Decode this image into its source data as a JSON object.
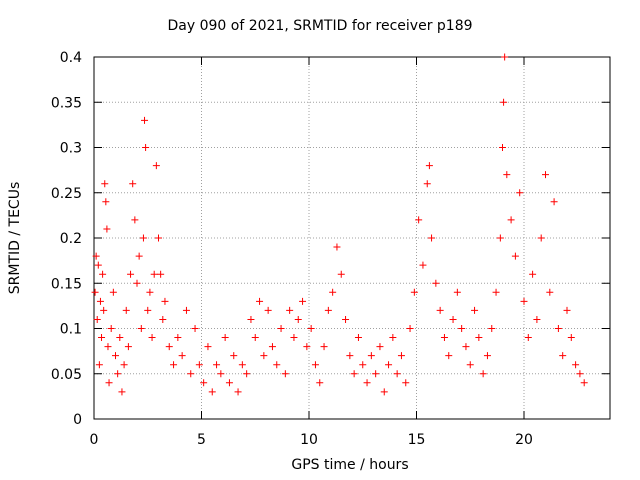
{
  "chart_data": {
    "type": "scatter",
    "title": "Day 090 of 2021, SRMTID for receiver p189",
    "xlabel": "GPS time / hours",
    "ylabel": "SRMTID / TECUs",
    "xlim": [
      0,
      24
    ],
    "ylim": [
      0,
      0.4
    ],
    "xticks": [
      0,
      5,
      10,
      15,
      20
    ],
    "yticks": [
      0,
      0.05,
      0.1,
      0.15,
      0.2,
      0.25,
      0.3,
      0.35,
      0.4
    ],
    "xtick_labels": [
      "0",
      "5",
      "10",
      "15",
      "20"
    ],
    "ytick_labels": [
      "0",
      "0.05",
      "0.1",
      "0.15",
      "0.2",
      "0.25",
      "0.3",
      "0.35",
      "0.4"
    ],
    "grid": true,
    "marker": "+",
    "color": "#ff0000",
    "series": [
      {
        "name": "SRMTID",
        "points": [
          [
            0.05,
            0.14
          ],
          [
            0.1,
            0.18
          ],
          [
            0.15,
            0.11
          ],
          [
            0.2,
            0.17
          ],
          [
            0.25,
            0.06
          ],
          [
            0.3,
            0.13
          ],
          [
            0.35,
            0.09
          ],
          [
            0.4,
            0.16
          ],
          [
            0.45,
            0.12
          ],
          [
            0.5,
            0.26
          ],
          [
            0.55,
            0.24
          ],
          [
            0.6,
            0.21
          ],
          [
            0.65,
            0.08
          ],
          [
            0.7,
            0.04
          ],
          [
            0.8,
            0.1
          ],
          [
            0.9,
            0.14
          ],
          [
            1.0,
            0.07
          ],
          [
            1.1,
            0.05
          ],
          [
            1.2,
            0.09
          ],
          [
            1.3,
            0.03
          ],
          [
            1.4,
            0.06
          ],
          [
            1.5,
            0.12
          ],
          [
            1.6,
            0.08
          ],
          [
            1.7,
            0.16
          ],
          [
            1.8,
            0.26
          ],
          [
            1.9,
            0.22
          ],
          [
            2.0,
            0.15
          ],
          [
            2.1,
            0.18
          ],
          [
            2.2,
            0.1
          ],
          [
            2.3,
            0.2
          ],
          [
            2.35,
            0.33
          ],
          [
            2.4,
            0.3
          ],
          [
            2.5,
            0.12
          ],
          [
            2.6,
            0.14
          ],
          [
            2.7,
            0.09
          ],
          [
            2.8,
            0.16
          ],
          [
            2.9,
            0.28
          ],
          [
            3.0,
            0.2
          ],
          [
            3.1,
            0.16
          ],
          [
            3.2,
            0.11
          ],
          [
            3.3,
            0.13
          ],
          [
            3.5,
            0.08
          ],
          [
            3.7,
            0.06
          ],
          [
            3.9,
            0.09
          ],
          [
            4.1,
            0.07
          ],
          [
            4.3,
            0.12
          ],
          [
            4.5,
            0.05
          ],
          [
            4.7,
            0.1
          ],
          [
            4.9,
            0.06
          ],
          [
            5.1,
            0.04
          ],
          [
            5.3,
            0.08
          ],
          [
            5.5,
            0.03
          ],
          [
            5.7,
            0.06
          ],
          [
            5.9,
            0.05
          ],
          [
            6.1,
            0.09
          ],
          [
            6.3,
            0.04
          ],
          [
            6.5,
            0.07
          ],
          [
            6.7,
            0.03
          ],
          [
            6.9,
            0.06
          ],
          [
            7.1,
            0.05
          ],
          [
            7.3,
            0.11
          ],
          [
            7.5,
            0.09
          ],
          [
            7.7,
            0.13
          ],
          [
            7.9,
            0.07
          ],
          [
            8.1,
            0.12
          ],
          [
            8.3,
            0.08
          ],
          [
            8.5,
            0.06
          ],
          [
            8.7,
            0.1
          ],
          [
            8.9,
            0.05
          ],
          [
            9.1,
            0.12
          ],
          [
            9.3,
            0.09
          ],
          [
            9.5,
            0.11
          ],
          [
            9.7,
            0.13
          ],
          [
            9.9,
            0.08
          ],
          [
            10.1,
            0.1
          ],
          [
            10.3,
            0.06
          ],
          [
            10.5,
            0.04
          ],
          [
            10.7,
            0.08
          ],
          [
            10.9,
            0.12
          ],
          [
            11.1,
            0.14
          ],
          [
            11.3,
            0.19
          ],
          [
            11.5,
            0.16
          ],
          [
            11.7,
            0.11
          ],
          [
            11.9,
            0.07
          ],
          [
            12.1,
            0.05
          ],
          [
            12.3,
            0.09
          ],
          [
            12.5,
            0.06
          ],
          [
            12.7,
            0.04
          ],
          [
            12.9,
            0.07
          ],
          [
            13.1,
            0.05
          ],
          [
            13.3,
            0.08
          ],
          [
            13.5,
            0.03
          ],
          [
            13.7,
            0.06
          ],
          [
            13.9,
            0.09
          ],
          [
            14.1,
            0.05
          ],
          [
            14.3,
            0.07
          ],
          [
            14.5,
            0.04
          ],
          [
            14.7,
            0.1
          ],
          [
            14.9,
            0.14
          ],
          [
            15.1,
            0.22
          ],
          [
            15.3,
            0.17
          ],
          [
            15.5,
            0.26
          ],
          [
            15.6,
            0.28
          ],
          [
            15.7,
            0.2
          ],
          [
            15.9,
            0.15
          ],
          [
            16.1,
            0.12
          ],
          [
            16.3,
            0.09
          ],
          [
            16.5,
            0.07
          ],
          [
            16.7,
            0.11
          ],
          [
            16.9,
            0.14
          ],
          [
            17.1,
            0.1
          ],
          [
            17.3,
            0.08
          ],
          [
            17.5,
            0.06
          ],
          [
            17.7,
            0.12
          ],
          [
            17.9,
            0.09
          ],
          [
            18.1,
            0.05
          ],
          [
            18.3,
            0.07
          ],
          [
            18.5,
            0.1
          ],
          [
            18.7,
            0.14
          ],
          [
            18.9,
            0.2
          ],
          [
            19.0,
            0.3
          ],
          [
            19.05,
            0.35
          ],
          [
            19.1,
            0.4
          ],
          [
            19.2,
            0.27
          ],
          [
            19.4,
            0.22
          ],
          [
            19.6,
            0.18
          ],
          [
            19.8,
            0.25
          ],
          [
            20.0,
            0.13
          ],
          [
            20.2,
            0.09
          ],
          [
            20.4,
            0.16
          ],
          [
            20.6,
            0.11
          ],
          [
            20.8,
            0.2
          ],
          [
            21.0,
            0.27
          ],
          [
            21.2,
            0.14
          ],
          [
            21.4,
            0.24
          ],
          [
            21.6,
            0.1
          ],
          [
            21.8,
            0.07
          ],
          [
            22.0,
            0.12
          ],
          [
            22.2,
            0.09
          ],
          [
            22.4,
            0.06
          ],
          [
            22.6,
            0.05
          ],
          [
            22.8,
            0.04
          ]
        ]
      }
    ]
  }
}
